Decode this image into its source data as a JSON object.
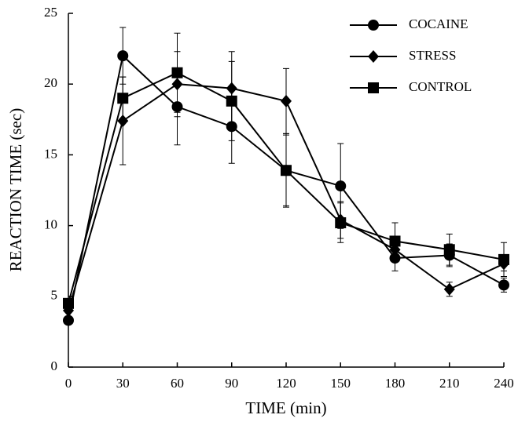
{
  "chart_data": {
    "type": "line",
    "x_label": "TIME (min)",
    "y_label": "REACTION TIME (sec)",
    "x": [
      0,
      30,
      60,
      90,
      120,
      150,
      180,
      210,
      240
    ],
    "xlim": [
      0,
      240
    ],
    "xticks": [
      0,
      30,
      60,
      90,
      120,
      150,
      180,
      210,
      240
    ],
    "ylim": [
      0,
      25
    ],
    "yticks": [
      0,
      5,
      10,
      15,
      20,
      25
    ],
    "grid": false,
    "legend": "upper right",
    "series": [
      {
        "name": "COCAINE",
        "color": "#000000",
        "marker": "circle",
        "values": [
          3.3,
          22.0,
          18.4,
          17.0,
          13.9,
          12.8,
          7.7,
          7.9,
          5.8
        ],
        "errors": [
          0,
          2.0,
          2.7,
          2.6,
          2.6,
          3.0,
          0.9,
          0.8,
          0.5
        ]
      },
      {
        "name": "STRESS",
        "color": "#000000",
        "marker": "diamond",
        "values": [
          4.0,
          17.4,
          20.0,
          19.7,
          18.8,
          10.4,
          8.3,
          5.5,
          7.3
        ],
        "errors": [
          0,
          3.1,
          2.3,
          2.6,
          2.3,
          1.3,
          0.8,
          0.5,
          0.5
        ]
      },
      {
        "name": "CONTROL",
        "color": "#000000",
        "marker": "square",
        "values": [
          4.5,
          19.0,
          20.8,
          18.8,
          13.9,
          10.2,
          8.9,
          8.3,
          7.6
        ],
        "errors": [
          0,
          1.5,
          2.8,
          2.8,
          2.5,
          1.4,
          1.3,
          1.1,
          1.2
        ]
      }
    ]
  }
}
